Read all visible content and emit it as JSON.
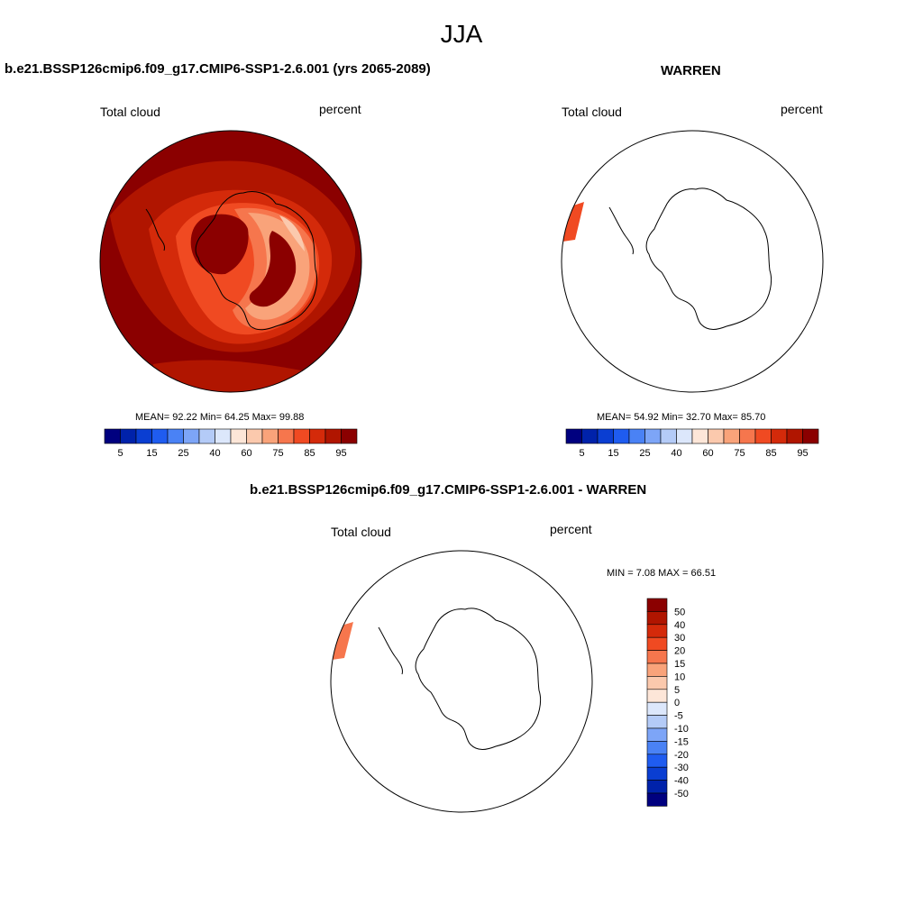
{
  "page": {
    "title": "JJA"
  },
  "panels": [
    {
      "case_title": "b.e21.BSSP126cmip6.f09_g17.CMIP6-SSP1-2.6.001 (yrs 2065-2089)",
      "variable": "Total cloud",
      "units": "percent",
      "stats": "MEAN=  92.22  Min=  64.25  Max=  99.88"
    },
    {
      "case_title": "WARREN",
      "variable": "Total cloud",
      "units": "percent",
      "stats": "MEAN=  54.92  Min=  32.70  Max=  85.70"
    },
    {
      "case_title": "b.e21.BSSP126cmip6.f09_g17.CMIP6-SSP1-2.6.001 - WARREN",
      "variable": "Total cloud",
      "units": "percent",
      "stats": "MIN =   7.08 MAX =  66.51"
    }
  ],
  "colorbars": {
    "absolute": {
      "labels": [
        "5",
        "15",
        "25",
        "40",
        "60",
        "75",
        "85",
        "95"
      ],
      "colors": [
        "#00007f",
        "#0022aa",
        "#0a3ed2",
        "#1f5cf0",
        "#4a82f5",
        "#7da5f7",
        "#b4cbf7",
        "#dce7fb",
        "#fde6d8",
        "#fbc9ad",
        "#f9a37a",
        "#f6764d",
        "#f04a22",
        "#d42a0a",
        "#b01500",
        "#8b0000"
      ]
    },
    "difference": {
      "labels": [
        "50",
        "40",
        "30",
        "20",
        "15",
        "10",
        "5",
        "0",
        "-5",
        "-10",
        "-15",
        "-20",
        "-30",
        "-40",
        "-50"
      ],
      "colors": [
        "#8b0000",
        "#b01500",
        "#d42a0a",
        "#f04a22",
        "#f6764d",
        "#f9a37a",
        "#fbc9ad",
        "#fde6d8",
        "#dce7fb",
        "#b4cbf7",
        "#7da5f7",
        "#4a82f5",
        "#1f5cf0",
        "#0a3ed2",
        "#0022aa",
        "#00007f"
      ]
    }
  },
  "map_colors": {
    "ocean": "#8b0000",
    "level_95": "#b01500",
    "level_85": "#d42a0a",
    "level_80": "#f04a22",
    "level_75": "#f6764d",
    "level_70": "#f9a37a",
    "level_65": "#fbc9ad",
    "warren_patch": "#f04a22",
    "diff_patch": "#f6764d"
  }
}
